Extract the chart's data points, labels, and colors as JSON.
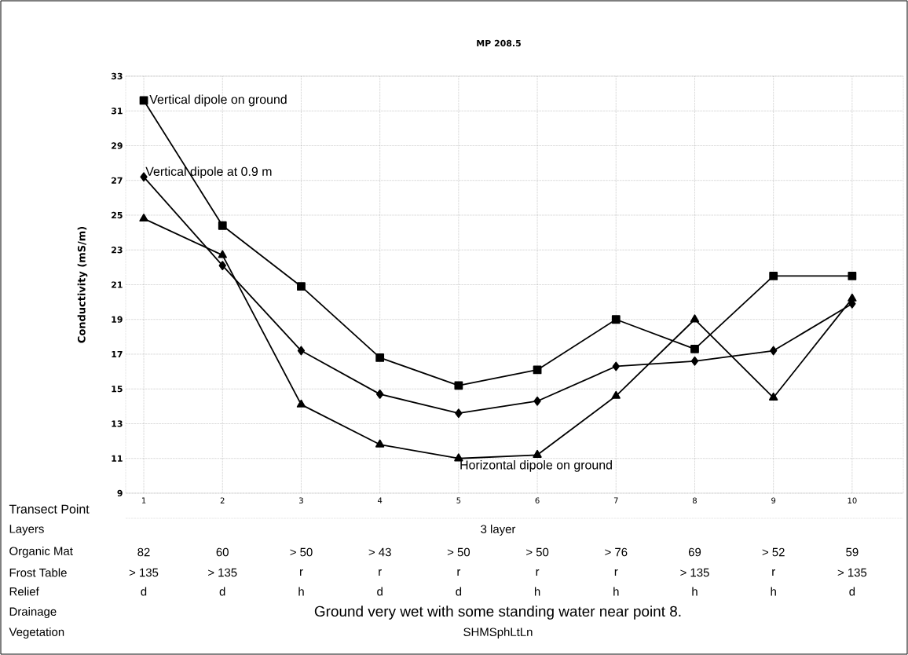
{
  "chart_data": {
    "type": "line",
    "title": "MP 208.5",
    "xlabel": "Transect Point",
    "ylabel": "Conductivity (mS/m)",
    "categories": [
      "1",
      "2",
      "3",
      "4",
      "5",
      "6",
      "7",
      "8",
      "9",
      "10"
    ],
    "series": [
      {
        "name": "Vertical dipole on ground",
        "color": "#000000",
        "marker": "square",
        "values": [
          31.6,
          24.4,
          20.9,
          16.8,
          15.2,
          16.1,
          19.0,
          17.3,
          21.5,
          21.5
        ]
      },
      {
        "name": "Vertical dipole at 0.9 m",
        "color": "#000000",
        "marker": "diamond",
        "values": [
          27.2,
          22.1,
          17.2,
          14.7,
          13.6,
          14.3,
          16.3,
          16.6,
          17.2,
          19.9
        ]
      },
      {
        "name": "Horizontal dipole on ground",
        "color": "#000000",
        "marker": "triangle",
        "values": [
          24.8,
          22.7,
          14.1,
          11.8,
          11.0,
          11.2,
          14.6,
          19.0,
          14.5,
          20.2
        ]
      }
    ],
    "ylim": [
      9,
      33
    ],
    "yticks": [
      9,
      11,
      13,
      15,
      17,
      19,
      21,
      23,
      25,
      27,
      29,
      31,
      33
    ],
    "grid": true,
    "line_style": "solid",
    "annotations": [
      "Layers",
      "3 layer",
      "Organic Mat",
      "82",
      "60",
      "> 50",
      "> 43",
      "> 50",
      "> 50",
      "> 76",
      "69",
      "> 52",
      "59",
      "Frost Table",
      "> 135",
      "> 135",
      "r",
      "r",
      "r",
      "r",
      "r",
      "> 135",
      "r",
      "> 135",
      "Relief",
      "d",
      "d",
      "h",
      "d",
      "d",
      "h",
      "h",
      "h",
      "h",
      "d",
      "Drainage",
      "Ground very wet with some standing water near point 8.",
      "Vegetation",
      "SHMSphLtLn"
    ]
  }
}
